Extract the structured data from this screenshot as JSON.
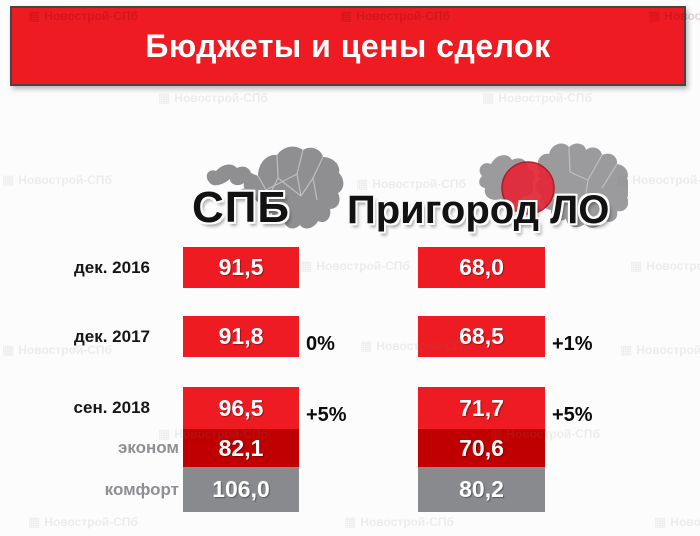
{
  "title": "Бюджеты и цены сделок",
  "watermark": {
    "text": "Новострой-СПб"
  },
  "header": {
    "columns": [
      {
        "label": "СПБ"
      },
      {
        "label": "Пригород ЛО"
      }
    ]
  },
  "rows": [
    {
      "label": "дек. 2016",
      "label_style": "dark",
      "box_color": "red",
      "spb": {
        "value": "91,5",
        "change": ""
      },
      "lo": {
        "value": "68,0",
        "change": ""
      }
    },
    {
      "label": "дек. 2017",
      "label_style": "dark",
      "box_color": "red",
      "spb": {
        "value": "91,8",
        "change": "0%"
      },
      "lo": {
        "value": "68,5",
        "change": "+1%"
      }
    },
    {
      "label": "сен. 2018",
      "label_style": "dark",
      "box_color": "red",
      "spb": {
        "value": "96,5",
        "change": "+5%"
      },
      "lo": {
        "value": "71,7",
        "change": "+5%"
      }
    },
    {
      "label": "эконом",
      "label_style": "gray",
      "box_color": "darkred",
      "spb": {
        "value": "82,1",
        "change": ""
      },
      "lo": {
        "value": "70,6",
        "change": ""
      }
    },
    {
      "label": "комфорт",
      "label_style": "gray",
      "box_color": "gray",
      "spb": {
        "value": "106,0",
        "change": ""
      },
      "lo": {
        "value": "80,2",
        "change": ""
      }
    }
  ],
  "colors": {
    "red": "#EE1B22",
    "darkred": "#C00000",
    "gray": "#898A8D",
    "title_bar": "#EE1B22",
    "map_gray_spb": "#8F8F92",
    "map_gray_lo": "#9B9B9E",
    "highlight_circle": "#E32636"
  },
  "chart_data": {
    "type": "bar",
    "title": "Бюджеты и цены сделок",
    "categories": [
      "дек. 2016",
      "дек. 2017",
      "сен. 2018",
      "эконом",
      "комфорт"
    ],
    "series": [
      {
        "name": "СПБ",
        "values": [
          91.5,
          91.8,
          96.5,
          82.1,
          106.0
        ],
        "changes": [
          null,
          "0%",
          "+5%",
          null,
          null
        ]
      },
      {
        "name": "Пригород ЛО",
        "values": [
          68.0,
          68.5,
          71.7,
          70.6,
          80.2
        ],
        "changes": [
          null,
          "+1%",
          "+5%",
          null,
          null
        ]
      }
    ],
    "value_format": "decimal-comma",
    "legend_position": "column-headers",
    "grid": false
  }
}
